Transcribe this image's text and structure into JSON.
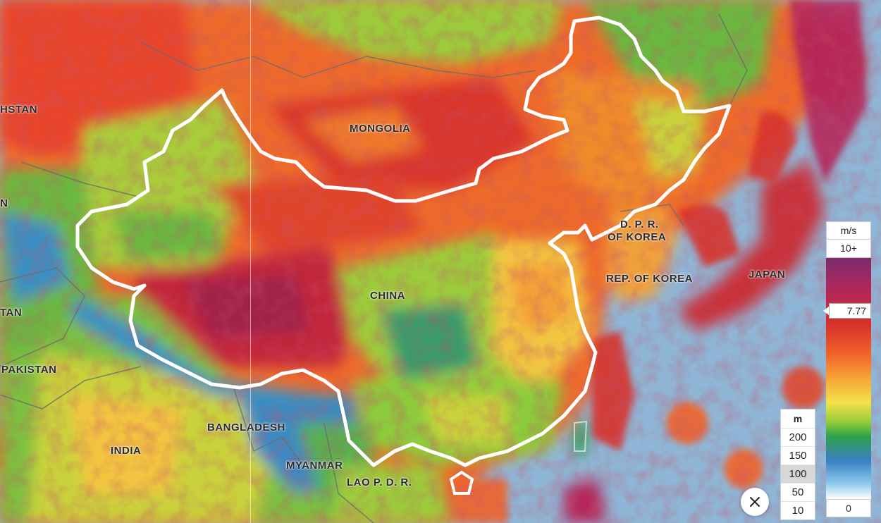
{
  "map": {
    "labels": [
      {
        "id": "mongolia",
        "text": "MONGOLIA"
      },
      {
        "id": "china",
        "text": "CHINA"
      },
      {
        "id": "dprk",
        "text": "D. P. R."
      },
      {
        "id": "dprk2",
        "text": "OF KOREA"
      },
      {
        "id": "rok",
        "text": "REP. OF KOREA"
      },
      {
        "id": "japan",
        "text": "JAPAN"
      },
      {
        "id": "india",
        "text": "INDIA"
      },
      {
        "id": "bangladesh",
        "text": "BANGLADESH"
      },
      {
        "id": "myanmar",
        "text": "MYANMAR"
      },
      {
        "id": "laos",
        "text": "LAO P. D. R."
      },
      {
        "id": "pakistan",
        "text": "PAKISTAN"
      },
      {
        "id": "kazakhstan",
        "text": "HSTAN"
      },
      {
        "id": "afghanistan",
        "text": "TAN"
      },
      {
        "id": "edge_n",
        "text": "N"
      }
    ]
  },
  "legend": {
    "unit": "m/s",
    "max_label": "10+",
    "min_label": "0",
    "marker_value": "7.77",
    "colors": [
      "#7a2a6e",
      "#d8332a",
      "#f6a437",
      "#f4e24a",
      "#2fa24a",
      "#3a7fc2",
      "#ffffff"
    ]
  },
  "heights": {
    "unit": "m",
    "options": [
      "200",
      "150",
      "100",
      "50",
      "10"
    ],
    "selected": "100"
  },
  "close_icon": "close-icon"
}
